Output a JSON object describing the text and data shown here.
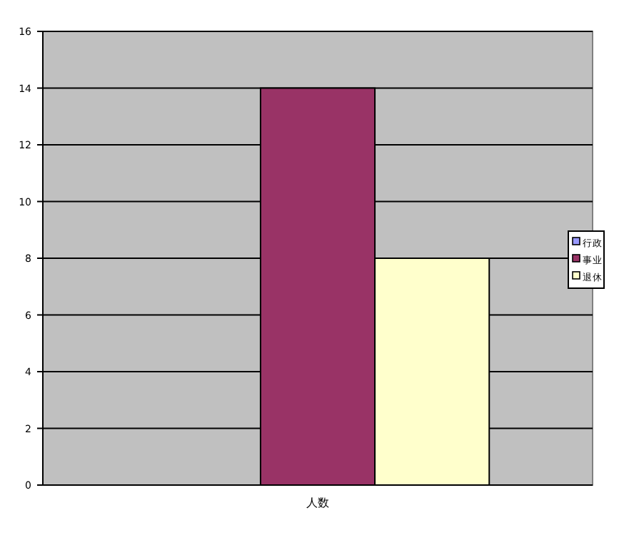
{
  "chart_data": {
    "type": "bar",
    "categories": [
      "人数"
    ],
    "series": [
      {
        "name": "行政",
        "color": "#9999ff",
        "values": [
          0
        ]
      },
      {
        "name": "事业",
        "color": "#993366",
        "values": [
          14
        ]
      },
      {
        "name": "退休",
        "color": "#ffffcc",
        "values": [
          8
        ]
      }
    ],
    "ylim": [
      0,
      16
    ],
    "yticks": [
      0,
      2,
      4,
      6,
      8,
      10,
      12,
      14,
      16
    ],
    "grid": "y",
    "legend": "right"
  }
}
